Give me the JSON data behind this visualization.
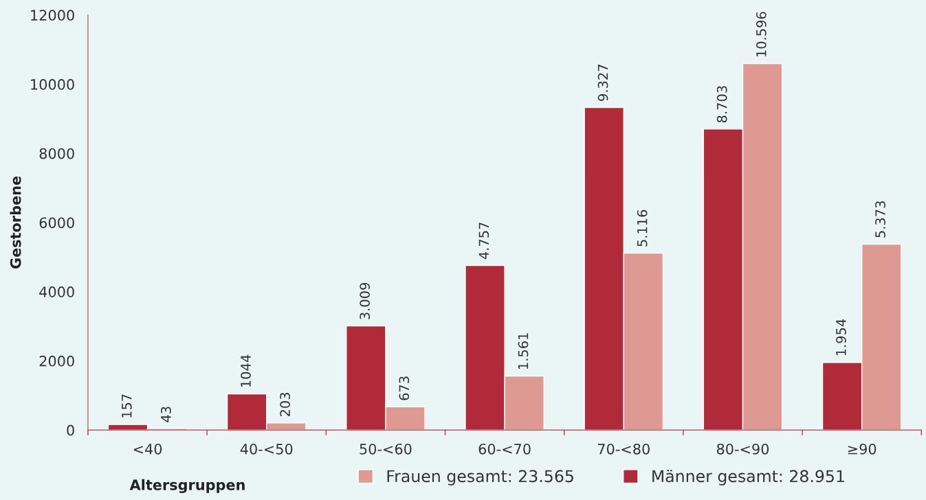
{
  "chart_data": {
    "type": "bar",
    "xlabel": "Altersgruppen",
    "ylabel": "Gestorbene",
    "categories": [
      "<40",
      "40-<50",
      "50-<60",
      "60-<70",
      "70-<80",
      "80-<90",
      "≥90"
    ],
    "series": [
      {
        "name": "Männer gesamt: 28.951",
        "color": "#b02a3a",
        "values": [
          157,
          1044,
          3009,
          4757,
          9327,
          8703,
          1954
        ],
        "value_labels": [
          "157",
          "1044",
          "3.009",
          "4.757",
          "9.327",
          "8.703",
          "1.954"
        ]
      },
      {
        "name": "Frauen gesamt: 23.565",
        "color": "#de9a92",
        "values": [
          43,
          203,
          673,
          1561,
          5116,
          10596,
          5373
        ],
        "value_labels": [
          "43",
          "203",
          "673",
          "1.561",
          "5.116",
          "10.596",
          "5.373"
        ]
      }
    ],
    "ylim": [
      0,
      12000
    ],
    "yticks": [
      0,
      2000,
      4000,
      6000,
      8000,
      10000,
      12000
    ],
    "grid": false,
    "legend": "bottom"
  }
}
